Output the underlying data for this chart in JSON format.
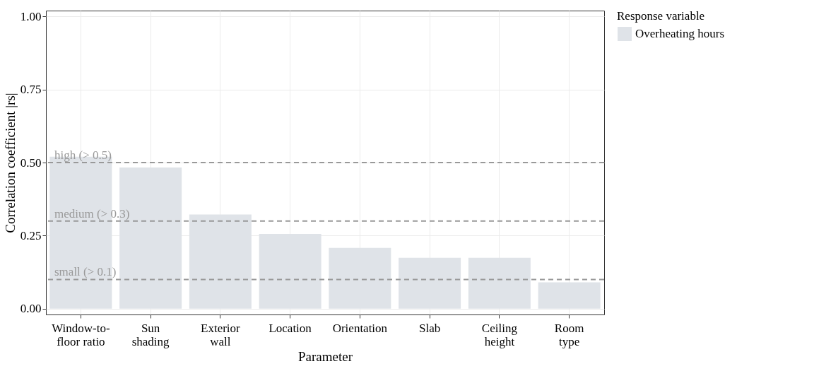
{
  "chart_data": {
    "type": "bar",
    "xlabel": "Parameter",
    "ylabel": "Correlation coefficient |rs|",
    "legend_title": "Response variable",
    "categories": [
      "Window-to-\nfloor ratio",
      "Sun\nshading",
      "Exterior\nwall",
      "Location",
      "Orientation",
      "Slab",
      "Ceiling\nheight",
      "Room\ntype"
    ],
    "series": [
      {
        "name": "Overheating hours",
        "color": "#dfe3e8",
        "values": [
          0.52,
          0.483,
          0.322,
          0.256,
          0.208,
          0.174,
          0.174,
          0.09
        ]
      }
    ],
    "ylim": [
      -0.02,
      1.02
    ],
    "yticks": [
      {
        "value": 0,
        "label": "0.00"
      },
      {
        "value": 0.25,
        "label": "0.25"
      },
      {
        "value": 0.5,
        "label": "0.50"
      },
      {
        "value": 0.75,
        "label": "0.75"
      },
      {
        "value": 1,
        "label": "1.00"
      }
    ],
    "grid": true,
    "legend": "right",
    "ref_lines": [
      {
        "axis": "y",
        "value": 0.5,
        "label": "high (> 0.5)",
        "color": "#999999",
        "line_style": "dashed"
      },
      {
        "axis": "y",
        "value": 0.3,
        "label": "medium (> 0.3)",
        "color": "#999999",
        "line_style": "dashed"
      },
      {
        "axis": "y",
        "value": 0.1,
        "label": "small (> 0.1)",
        "color": "#999999",
        "line_style": "dashed"
      }
    ]
  }
}
